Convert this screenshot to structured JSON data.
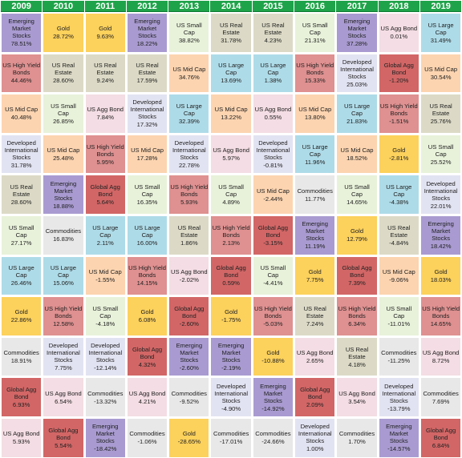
{
  "colors": {
    "header": "#1fa34a",
    "Emerging Market Stocks": "#a99bd1",
    "Gold": "#fcd15c",
    "US Small Cap": "#e8f2da",
    "US Real Estate": "#dcdac6",
    "US Agg Bond": "#f4dde4",
    "US Large Cap": "#aedbe8",
    "US High Yield Bonds": "#df9090",
    "Developed International Stocks": "#e2e3f2",
    "Global Agg Bond": "#d26666",
    "US Mid Cap": "#fcd4b0",
    "Commodities": "#e8e8e8"
  },
  "chart_data": {
    "type": "table",
    "years": [
      "2009",
      "2010",
      "2011",
      "2012",
      "2013",
      "2014",
      "2015",
      "2016",
      "2017",
      "2018",
      "2019"
    ],
    "columns": [
      [
        {
          "name": "Emerging Market Stocks",
          "ret": "78.51%"
        },
        {
          "name": "US High Yield Bonds",
          "ret": "44.46%"
        },
        {
          "name": "US Mid Cap",
          "ret": "40.48%"
        },
        {
          "name": "Developed International Stocks",
          "ret": "31.78%"
        },
        {
          "name": "US Real Estate",
          "ret": "28.60%"
        },
        {
          "name": "US Small Cap",
          "ret": "27.17%"
        },
        {
          "name": "US Large Cap",
          "ret": "26.46%"
        },
        {
          "name": "Gold",
          "ret": "22.86%"
        },
        {
          "name": "Commodities",
          "ret": "18.91%"
        },
        {
          "name": "Global Agg Bond",
          "ret": "6.93%"
        },
        {
          "name": "US Agg Bond",
          "ret": "5.93%"
        }
      ],
      [
        {
          "name": "Gold",
          "ret": "28.72%"
        },
        {
          "name": "US Real Estate",
          "ret": "28.60%"
        },
        {
          "name": "US Small Cap",
          "ret": "26.85%"
        },
        {
          "name": "US Mid Cap",
          "ret": "25.48%"
        },
        {
          "name": "Emerging Market Stocks",
          "ret": "18.88%"
        },
        {
          "name": "Commodities",
          "ret": "16.83%"
        },
        {
          "name": "US Large Cap",
          "ret": "15.06%"
        },
        {
          "name": "US High Yield Bonds",
          "ret": "12.58%"
        },
        {
          "name": "Developed International Stocks",
          "ret": "7.75%"
        },
        {
          "name": "US Agg Bond",
          "ret": "6.54%"
        },
        {
          "name": "Global Agg Bond",
          "ret": "5.54%"
        }
      ],
      [
        {
          "name": "Gold",
          "ret": "9.63%"
        },
        {
          "name": "US Real Estate",
          "ret": "9.24%"
        },
        {
          "name": "US Agg Bond",
          "ret": "7.84%"
        },
        {
          "name": "US High Yield Bonds",
          "ret": "5.95%"
        },
        {
          "name": "Global Agg Bond",
          "ret": "5.64%"
        },
        {
          "name": "US Large Cap",
          "ret": "2.11%"
        },
        {
          "name": "US Mid Cap",
          "ret": "-1.55%"
        },
        {
          "name": "US Small Cap",
          "ret": "-4.18%"
        },
        {
          "name": "Developed International Stocks",
          "ret": "-12.14%"
        },
        {
          "name": "Commodities",
          "ret": "-13.32%"
        },
        {
          "name": "Emerging Market Stocks",
          "ret": "-18.42%"
        }
      ],
      [
        {
          "name": "Emerging Market Stocks",
          "ret": "18.22%"
        },
        {
          "name": "US Real Estate",
          "ret": "17.59%"
        },
        {
          "name": "Developed International Stocks",
          "ret": "17.32%"
        },
        {
          "name": "US Mid Cap",
          "ret": "17.28%"
        },
        {
          "name": "US Small Cap",
          "ret": "16.35%"
        },
        {
          "name": "US Large Cap",
          "ret": "16.00%"
        },
        {
          "name": "US High Yield Bonds",
          "ret": "14.15%"
        },
        {
          "name": "Gold",
          "ret": "6.08%"
        },
        {
          "name": "Global Agg Bond",
          "ret": "4.32%"
        },
        {
          "name": "US Agg Bond",
          "ret": "4.21%"
        },
        {
          "name": "Commodities",
          "ret": "-1.06%"
        }
      ],
      [
        {
          "name": "US Small Cap",
          "ret": "38.82%"
        },
        {
          "name": "US Mid Cap",
          "ret": "34.76%"
        },
        {
          "name": "US Large Cap",
          "ret": "32.39%"
        },
        {
          "name": "Developed International Stocks",
          "ret": "22.78%"
        },
        {
          "name": "US High Yield Bonds",
          "ret": "5.93%"
        },
        {
          "name": "US Real Estate",
          "ret": "1.86%"
        },
        {
          "name": "US Agg Bond",
          "ret": "-2.02%"
        },
        {
          "name": "Global Agg Bond",
          "ret": "-2.60%"
        },
        {
          "name": "Emerging Market Stocks",
          "ret": "-2.60%"
        },
        {
          "name": "Commodities",
          "ret": "-9.52%"
        },
        {
          "name": "Gold",
          "ret": "-28.65%"
        }
      ],
      [
        {
          "name": "US Real Estate",
          "ret": "31.78%"
        },
        {
          "name": "US Large Cap",
          "ret": "13.69%"
        },
        {
          "name": "US Mid Cap",
          "ret": "13.22%"
        },
        {
          "name": "US Agg Bond",
          "ret": "5.97%"
        },
        {
          "name": "US Small Cap",
          "ret": "4.89%"
        },
        {
          "name": "US High Yield Bonds",
          "ret": "2.13%"
        },
        {
          "name": "Global Agg Bond",
          "ret": "0.59%"
        },
        {
          "name": "Gold",
          "ret": "-1.75%"
        },
        {
          "name": "Emerging Market Stocks",
          "ret": "-2.19%"
        },
        {
          "name": "Developed International Stocks",
          "ret": "-4.90%"
        },
        {
          "name": "Commodities",
          "ret": "-17.01%"
        }
      ],
      [
        {
          "name": "US Real Estate",
          "ret": "4.23%"
        },
        {
          "name": "US Large Cap",
          "ret": "1.38%"
        },
        {
          "name": "US Agg Bond",
          "ret": "0.55%"
        },
        {
          "name": "Developed International Stocks",
          "ret": "-0.81%"
        },
        {
          "name": "US Mid Cap",
          "ret": "-2.44%"
        },
        {
          "name": "Global Agg Bond",
          "ret": "-3.15%"
        },
        {
          "name": "US Small Cap",
          "ret": "-4.41%"
        },
        {
          "name": "US High Yield Bonds",
          "ret": "-5.03%"
        },
        {
          "name": "Gold",
          "ret": "-10.88%"
        },
        {
          "name": "Emerging Market Stocks",
          "ret": "-14.92%"
        },
        {
          "name": "Commodities",
          "ret": "-24.66%"
        }
      ],
      [
        {
          "name": "US Small Cap",
          "ret": "21.31%"
        },
        {
          "name": "US High Yield Bonds",
          "ret": "15.33%"
        },
        {
          "name": "US Mid Cap",
          "ret": "13.80%"
        },
        {
          "name": "US Large Cap",
          "ret": "11.96%"
        },
        {
          "name": "Commodities",
          "ret": "11.77%"
        },
        {
          "name": "Emerging Market Stocks",
          "ret": "11.19%"
        },
        {
          "name": "Gold",
          "ret": "7.75%"
        },
        {
          "name": "US Real Estate",
          "ret": "7.24%"
        },
        {
          "name": "US Agg Bond",
          "ret": "2.65%"
        },
        {
          "name": "Global Agg Bond",
          "ret": "2.09%"
        },
        {
          "name": "Developed International Stocks",
          "ret": "1.00%"
        }
      ],
      [
        {
          "name": "Emerging Market Stocks",
          "ret": "37.28%"
        },
        {
          "name": "Developed International Stocks",
          "ret": "25.03%"
        },
        {
          "name": "US Large Cap",
          "ret": "21.83%"
        },
        {
          "name": "US Mid Cap",
          "ret": "18.52%"
        },
        {
          "name": "US Small Cap",
          "ret": "14.65%"
        },
        {
          "name": "Gold",
          "ret": "12.79%"
        },
        {
          "name": "Global Agg Bond",
          "ret": "7.39%"
        },
        {
          "name": "US High Yield Bonds",
          "ret": "6.34%"
        },
        {
          "name": "US Real Estate",
          "ret": "4.18%"
        },
        {
          "name": "US Agg Bond",
          "ret": "3.54%"
        },
        {
          "name": "Commodities",
          "ret": "1.70%"
        }
      ],
      [
        {
          "name": "US Agg Bond",
          "ret": "0.01%"
        },
        {
          "name": "Global Agg Bond",
          "ret": "-1.20%"
        },
        {
          "name": "US High Yield Bonds",
          "ret": "-1.51%"
        },
        {
          "name": "Gold",
          "ret": "-2.81%"
        },
        {
          "name": "US Large Cap",
          "ret": "-4.38%"
        },
        {
          "name": "US Real Estate",
          "ret": "-4.84%"
        },
        {
          "name": "US Mid Cap",
          "ret": "-9.06%"
        },
        {
          "name": "US Small Cap",
          "ret": "-11.01%"
        },
        {
          "name": "Commodities",
          "ret": "-11.25%"
        },
        {
          "name": "Developed International Stocks",
          "ret": "-13.79%"
        },
        {
          "name": "Emerging Market Stocks",
          "ret": "-14.57%"
        }
      ],
      [
        {
          "name": "US Large Cap",
          "ret": "31.49%"
        },
        {
          "name": "US Mid Cap",
          "ret": "30.54%"
        },
        {
          "name": "US Real Estate",
          "ret": "25.76%"
        },
        {
          "name": "US Small Cap",
          "ret": "25.52%"
        },
        {
          "name": "Developed International Stocks",
          "ret": "22.01%"
        },
        {
          "name": "Emerging Market Stocks",
          "ret": "18.42%"
        },
        {
          "name": "Gold",
          "ret": "18.03%"
        },
        {
          "name": "US High Yield Bonds",
          "ret": "14.65%"
        },
        {
          "name": "US Agg Bond",
          "ret": "8.72%"
        },
        {
          "name": "Commodities",
          "ret": "7.69%"
        },
        {
          "name": "Global Agg Bond",
          "ret": "6.84%"
        }
      ]
    ]
  }
}
